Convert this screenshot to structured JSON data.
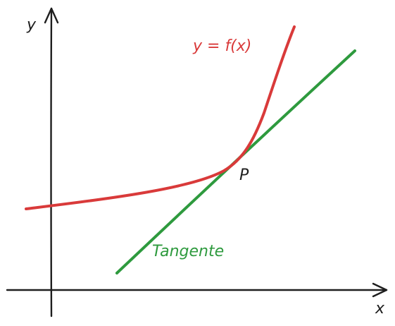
{
  "axes": {
    "x_label": "x",
    "y_label": "y"
  },
  "curve": {
    "label": "y = f(x)",
    "color": "#d93a3a"
  },
  "tangent": {
    "label": "Tangente",
    "color": "#2e9a3e"
  },
  "point": {
    "label": "P"
  },
  "colors": {
    "axis": "#1e1e1e",
    "background": "#ffffff"
  }
}
